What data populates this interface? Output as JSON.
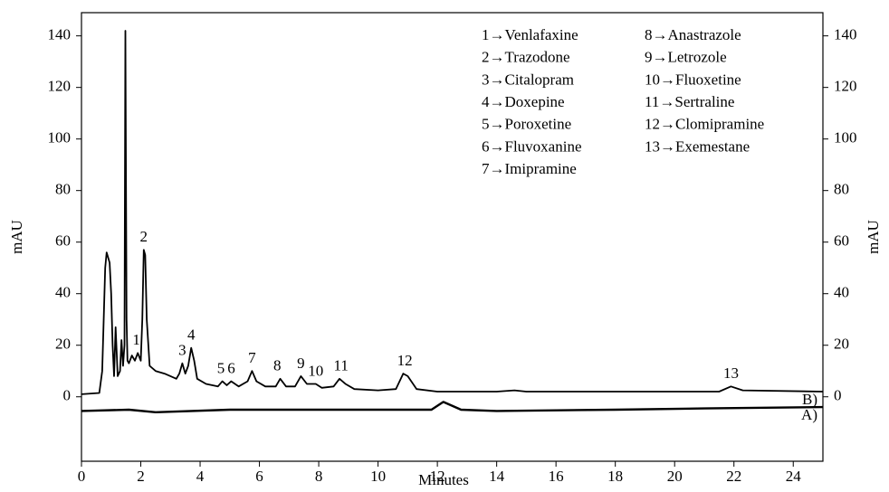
{
  "chart_data": {
    "type": "line",
    "xlabel": "Minutes",
    "ylabel": "mAU",
    "y2label": "mAU",
    "xlim": [
      0,
      25
    ],
    "ylim": [
      -25,
      149
    ],
    "xticks": [
      0,
      2,
      4,
      6,
      8,
      10,
      12,
      14,
      16,
      18,
      20,
      22,
      24
    ],
    "yticks": [
      0,
      20,
      40,
      60,
      80,
      100,
      120,
      140
    ],
    "y2lim": [
      -25,
      149
    ],
    "y2ticks": [
      0,
      20,
      40,
      60,
      80,
      100,
      120,
      140
    ],
    "series": [
      {
        "name": "B)",
        "color": "#000000",
        "x": [
          0,
          0.6,
          0.7,
          0.8,
          0.85,
          0.95,
          1.0,
          1.05,
          1.1,
          1.15,
          1.22,
          1.3,
          1.35,
          1.4,
          1.45,
          1.48,
          1.52,
          1.55,
          1.6,
          1.7,
          1.8,
          1.9,
          2.0,
          2.05,
          2.1,
          2.15,
          2.2,
          2.3,
          2.5,
          2.8,
          3.0,
          3.2,
          3.3,
          3.4,
          3.5,
          3.6,
          3.7,
          3.8,
          3.9,
          4.2,
          4.6,
          4.75,
          4.9,
          5.05,
          5.3,
          5.6,
          5.75,
          5.9,
          6.2,
          6.55,
          6.7,
          6.9,
          7.2,
          7.4,
          7.6,
          7.9,
          8.1,
          8.5,
          8.7,
          8.9,
          9.2,
          10.0,
          10.6,
          10.85,
          11.0,
          11.3,
          12,
          14,
          14.6,
          15,
          21.5,
          21.9,
          22.3,
          25
        ],
        "values": [
          1,
          1.5,
          10,
          50,
          56,
          52,
          40,
          20,
          8,
          27,
          8,
          10,
          22,
          12,
          20,
          142,
          30,
          14,
          13,
          16,
          14,
          17,
          14,
          30,
          57,
          55,
          30,
          12,
          10,
          9,
          8,
          7,
          9,
          13,
          9,
          12,
          19,
          14,
          7,
          5,
          4,
          6,
          4.5,
          6,
          4,
          6,
          10,
          6,
          4,
          4,
          7,
          4,
          4,
          8,
          5,
          5,
          3.5,
          4,
          7,
          5,
          3,
          2.5,
          3,
          9,
          8,
          3,
          2,
          2,
          2.5,
          2,
          2,
          4,
          2.5,
          2
        ]
      },
      {
        "name": "A)",
        "color": "#000000",
        "x": [
          0,
          1.6,
          2.5,
          5,
          7,
          10,
          11.8,
          12.2,
          12.8,
          14,
          18,
          21,
          25
        ],
        "values": [
          -5.5,
          -5,
          -6,
          -5,
          -5,
          -5,
          -5,
          -2,
          -5,
          -5.5,
          -5,
          -4.5,
          -4
        ]
      }
    ],
    "peaks": [
      {
        "label": "1",
        "x": 1.85
      },
      {
        "label": "2",
        "x": 2.1
      },
      {
        "label": "3",
        "x": 3.4
      },
      {
        "label": "4",
        "x": 3.7
      },
      {
        "label": "5",
        "x": 4.7
      },
      {
        "label": "6",
        "x": 5.05
      },
      {
        "label": "7",
        "x": 5.75
      },
      {
        "label": "8",
        "x": 6.6
      },
      {
        "label": "9",
        "x": 7.4
      },
      {
        "label": "10",
        "x": 7.9
      },
      {
        "label": "11",
        "x": 8.75
      },
      {
        "label": "12",
        "x": 10.9
      },
      {
        "label": "13",
        "x": 21.9
      }
    ],
    "legend_items": [
      "1→Venlafaxine",
      "2→Trazodone",
      "3→Citalopram",
      "4→Doxepine",
      "5→Poroxetine",
      "6→Fluvoxanine",
      "7→Imipramine",
      "8→Anastrazole",
      "9→Letrozole",
      "10→Fluoxetine",
      "11→Sertraline",
      "12→Clomipramine",
      "13→Exemestane"
    ]
  }
}
